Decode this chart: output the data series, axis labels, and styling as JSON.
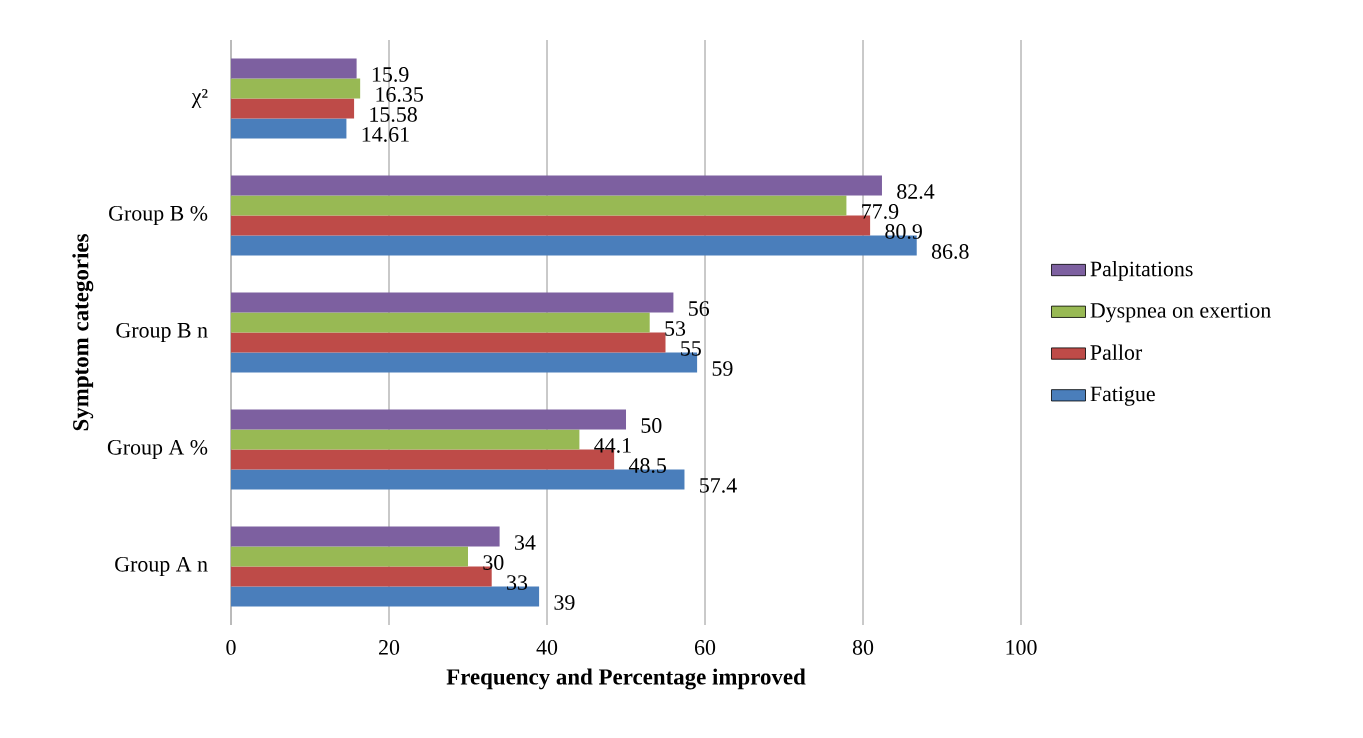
{
  "chart_data": {
    "type": "bar",
    "orientation": "horizontal",
    "xlabel": "Frequency and Percentage improved",
    "ylabel": "Symptom categories",
    "categories": [
      "χ²",
      "Group B %",
      "Group B n",
      "Group A %",
      "Group A n"
    ],
    "series": [
      {
        "name": "Fatigue",
        "color": "#4a7ebb",
        "values": [
          14.61,
          86.8,
          59,
          57.4,
          39
        ]
      },
      {
        "name": "Pallor",
        "color": "#be4b48",
        "values": [
          15.58,
          80.9,
          55,
          48.5,
          33
        ]
      },
      {
        "name": "Dyspnea on exertion",
        "color": "#98b954",
        "values": [
          16.35,
          77.9,
          53,
          44.1,
          30
        ]
      },
      {
        "name": "Palpitations",
        "color": "#7d60a0",
        "values": [
          15.9,
          82.4,
          56,
          50,
          34
        ]
      }
    ],
    "xlim": [
      0,
      100
    ],
    "xticks": [
      0,
      20,
      40,
      60,
      80,
      100
    ],
    "grid": "x",
    "legend": "right",
    "data_labels": true
  }
}
